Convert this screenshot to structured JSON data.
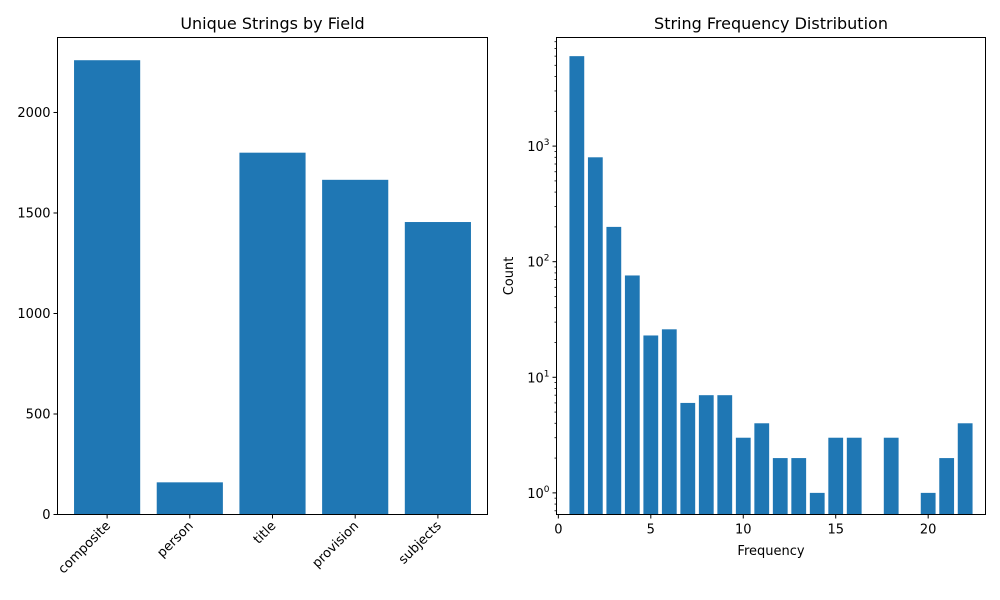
{
  "chart_data": [
    {
      "type": "bar",
      "title": "Unique Strings by Field",
      "xlabel": "",
      "ylabel": "",
      "categories": [
        "composite",
        "person",
        "title",
        "provision",
        "subjects"
      ],
      "values": [
        2260,
        160,
        1800,
        1665,
        1455
      ],
      "ylim": [
        0,
        2373
      ],
      "yticks": [
        0,
        500,
        1000,
        1500,
        2000
      ],
      "yscale": "linear",
      "grid": false,
      "color": "#1f77b4"
    },
    {
      "type": "bar",
      "title": "String Frequency Distribution",
      "xlabel": "Frequency",
      "ylabel": "Count",
      "x": [
        1,
        2,
        3,
        4,
        5,
        6,
        7,
        8,
        9,
        10,
        11,
        12,
        13,
        14,
        15,
        16,
        18,
        20,
        21,
        22
      ],
      "values": [
        6000,
        800,
        200,
        76,
        23,
        26,
        6,
        7,
        7,
        3,
        4,
        2,
        2,
        1,
        3,
        3,
        3,
        1,
        2,
        4
      ],
      "xlim": [
        -0.1,
        23.1
      ],
      "xticks": [
        0,
        5,
        10,
        15,
        20
      ],
      "ylim": [
        0.65,
        8700
      ],
      "yticks": [
        1,
        10,
        100,
        1000
      ],
      "yticklabels": [
        "10",
        "10",
        "10",
        "10"
      ],
      "ytickexponents": [
        "0",
        "1",
        "2",
        "3"
      ],
      "yscale": "log",
      "grid": false,
      "color": "#1f77b4"
    }
  ]
}
